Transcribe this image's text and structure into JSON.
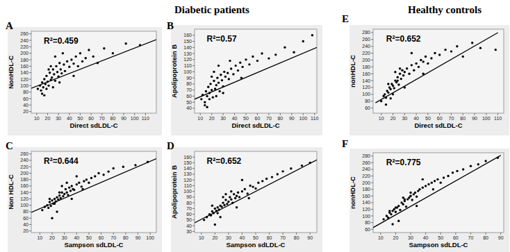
{
  "headers": [
    "Diabetic patients",
    "Healthy controls"
  ],
  "chart_data": [
    {
      "type": "scatter",
      "label": "A",
      "annotation": "R²=0.459",
      "x_label": "Direct sdLDL-C",
      "y_label": "NonHDL-C",
      "xlim": [
        5,
        120
      ],
      "ylim": [
        15,
        268
      ],
      "xticks": [
        10,
        20,
        30,
        40,
        50,
        60,
        70,
        80,
        90,
        100,
        110
      ],
      "yticks": [
        20,
        40,
        60,
        80,
        100,
        120,
        140,
        160,
        180,
        200,
        220,
        240,
        260
      ],
      "series": [
        {
          "type": "scatter",
          "color": "#000000",
          "marker": "circle",
          "x": [
            11,
            13,
            14,
            15,
            16,
            17,
            18,
            19,
            20,
            21,
            22,
            23,
            24,
            25,
            26,
            27,
            28,
            29,
            30,
            31,
            32,
            33,
            35,
            36,
            38,
            40,
            42,
            44,
            46,
            48,
            50,
            52,
            55,
            58,
            62,
            66,
            72,
            80,
            92,
            105,
            15,
            19,
            23,
            27,
            31,
            25,
            21,
            17,
            34,
            44
          ],
          "values": [
            90,
            100,
            85,
            110,
            95,
            120,
            105,
            130,
            112,
            100,
            140,
            118,
            125,
            150,
            135,
            115,
            160,
            142,
            128,
            170,
            150,
            138,
            165,
            145,
            175,
            158,
            180,
            168,
            190,
            160,
            200,
            175,
            185,
            210,
            190,
            170,
            215,
            200,
            230,
            225,
            75,
            90,
            160,
            190,
            110,
            95,
            150,
            70,
            200,
            130
          ]
        },
        {
          "type": "line",
          "color": "#000000",
          "line_style": "solid",
          "x": [
            5,
            120
          ],
          "values": [
            92,
            242
          ]
        }
      ]
    },
    {
      "type": "scatter",
      "label": "B",
      "annotation": "R²=0.57",
      "x_label": "Direct sdLDL-C",
      "y_label": "Apolipoprotein B",
      "xlim": [
        5,
        112
      ],
      "ylim": [
        32,
        170
      ],
      "xticks": [
        10,
        20,
        30,
        40,
        50,
        60,
        70,
        80,
        90,
        100,
        110
      ],
      "yticks": [
        40,
        50,
        60,
        70,
        80,
        90,
        100,
        110,
        120,
        130,
        140,
        150,
        160
      ],
      "series": [
        {
          "type": "scatter",
          "color": "#000000",
          "marker": "circle",
          "x": [
            11,
            12,
            14,
            15,
            16,
            17,
            18,
            19,
            20,
            21,
            22,
            23,
            24,
            25,
            26,
            27,
            28,
            29,
            30,
            31,
            32,
            34,
            35,
            37,
            39,
            41,
            43,
            45,
            47,
            50,
            53,
            56,
            60,
            64,
            70,
            76,
            84,
            92,
            100,
            108,
            14,
            18,
            22,
            26,
            30,
            24,
            20,
            16,
            36,
            46
          ],
          "values": [
            55,
            62,
            50,
            68,
            60,
            75,
            65,
            80,
            70,
            58,
            85,
            72,
            78,
            90,
            82,
            68,
            95,
            86,
            76,
            100,
            92,
            98,
            88,
            105,
            96,
            110,
            102,
            115,
            108,
            120,
            112,
            125,
            118,
            130,
            122,
            128,
            140,
            132,
            150,
            160,
            45,
            55,
            100,
            110,
            65,
            60,
            92,
            42,
            118,
            90
          ]
        },
        {
          "type": "line",
          "color": "#000000",
          "line_style": "solid",
          "x": [
            5,
            112
          ],
          "values": [
            55,
            140
          ]
        }
      ]
    },
    {
      "type": "scatter",
      "label": "C",
      "annotation": "R²=0.644",
      "x_label": "Sampson sdLDL-C",
      "y_label": "Non HDL-C",
      "xlim": [
        3,
        105
      ],
      "ylim": [
        15,
        268
      ],
      "xticks": [
        10,
        20,
        30,
        40,
        50,
        60,
        70,
        80,
        90,
        100
      ],
      "yticks": [
        20,
        40,
        60,
        80,
        100,
        120,
        140,
        160,
        180,
        200,
        220,
        240,
        260
      ],
      "series": [
        {
          "type": "scatter",
          "color": "#000000",
          "marker": "circle",
          "x": [
            12,
            14,
            16,
            17,
            18,
            19,
            20,
            21,
            22,
            23,
            24,
            25,
            26,
            27,
            28,
            29,
            30,
            31,
            32,
            33,
            34,
            35,
            36,
            37,
            38,
            40,
            42,
            44,
            46,
            48,
            50,
            52,
            55,
            58,
            62,
            66,
            70,
            78,
            88,
            98,
            20,
            24,
            28,
            32,
            36,
            26,
            22,
            18,
            40,
            45
          ],
          "values": [
            85,
            95,
            100,
            92,
            110,
            98,
            115,
            105,
            120,
            112,
            125,
            118,
            130,
            122,
            140,
            128,
            135,
            150,
            140,
            132,
            155,
            145,
            160,
            150,
            148,
            165,
            170,
            158,
            175,
            180,
            170,
            185,
            190,
            200,
            195,
            205,
            215,
            220,
            225,
            235,
            60,
            80,
            160,
            170,
            120,
            140,
            105,
            120,
            190,
            150
          ]
        },
        {
          "type": "line",
          "color": "#000000",
          "line_style": "solid",
          "x": [
            3,
            105
          ],
          "values": [
            78,
            245
          ]
        }
      ]
    },
    {
      "type": "scatter",
      "label": "D",
      "annotation": "R²=0.652",
      "x_label": "Sampson sdLDL-C",
      "y_label": "Apolipoprotein B",
      "xlim": [
        5,
        95
      ],
      "ylim": [
        28,
        170
      ],
      "xticks": [
        10,
        20,
        30,
        40,
        50,
        60,
        70,
        80,
        90
      ],
      "yticks": [
        30,
        40,
        50,
        60,
        70,
        80,
        90,
        100,
        110,
        120,
        130,
        140,
        150,
        160
      ],
      "series": [
        {
          "type": "scatter",
          "color": "#000000",
          "marker": "circle",
          "x": [
            12,
            14,
            16,
            17,
            18,
            19,
            20,
            21,
            22,
            23,
            24,
            25,
            26,
            27,
            28,
            29,
            30,
            31,
            32,
            33,
            34,
            35,
            36,
            37,
            38,
            40,
            42,
            44,
            46,
            48,
            50,
            52,
            55,
            58,
            62,
            66,
            70,
            76,
            84,
            90,
            20,
            24,
            28,
            32,
            36,
            26,
            22,
            18,
            40,
            45
          ],
          "values": [
            50,
            55,
            60,
            58,
            65,
            62,
            70,
            66,
            72,
            68,
            75,
            73,
            80,
            76,
            85,
            78,
            82,
            90,
            86,
            80,
            95,
            88,
            92,
            98,
            90,
            100,
            104,
            96,
            110,
            108,
            105,
            115,
            118,
            122,
            125,
            130,
            135,
            140,
            145,
            150,
            42,
            55,
            95,
            100,
            72,
            90,
            62,
            75,
            120,
            88
          ]
        },
        {
          "type": "line",
          "color": "#000000",
          "line_style": "solid",
          "x": [
            5,
            95
          ],
          "values": [
            45,
            155
          ]
        }
      ]
    },
    {
      "type": "scatter",
      "label": "E",
      "annotation": "R²=0.652",
      "x_label": "Direct sdLDL-C",
      "y_label": "nonHDL-C",
      "xlim": [
        3,
        115
      ],
      "ylim": [
        45,
        290
      ],
      "xticks": [
        10,
        20,
        30,
        40,
        50,
        60,
        70,
        80,
        90,
        100,
        110
      ],
      "yticks": [
        60,
        80,
        100,
        120,
        140,
        160,
        180,
        200,
        220,
        240,
        260,
        280
      ],
      "series": [
        {
          "type": "scatter",
          "color": "#000000",
          "marker": "circle",
          "x": [
            10,
            12,
            13,
            14,
            15,
            16,
            17,
            18,
            19,
            20,
            21,
            22,
            23,
            24,
            25,
            26,
            27,
            28,
            29,
            30,
            32,
            34,
            36,
            38,
            40,
            42,
            44,
            46,
            48,
            50,
            53,
            56,
            60,
            65,
            70,
            75,
            80,
            88,
            95,
            108,
            14,
            18,
            22,
            26,
            30,
            24,
            20,
            16,
            36,
            46
          ],
          "values": [
            80,
            95,
            100,
            90,
            110,
            105,
            120,
            115,
            130,
            125,
            118,
            140,
            135,
            150,
            128,
            160,
            145,
            170,
            155,
            165,
            175,
            160,
            185,
            170,
            190,
            180,
            200,
            195,
            210,
            190,
            205,
            220,
            215,
            230,
            225,
            240,
            210,
            250,
            235,
            230,
            70,
            88,
            165,
            175,
            120,
            140,
            100,
            130,
            220,
            160
          ]
        },
        {
          "type": "line",
          "color": "#000000",
          "line_style": "solid",
          "x": [
            5,
            110
          ],
          "values": [
            75,
            280
          ]
        }
      ]
    },
    {
      "type": "scatter",
      "label": "F",
      "annotation": "R²=0.775",
      "x_label": "Sampson sdLDL-C",
      "y_label": "nonHDL-C",
      "xlim": [
        5,
        92
      ],
      "ylim": [
        50,
        290
      ],
      "xticks": [
        10,
        20,
        30,
        40,
        50,
        60,
        70,
        80,
        90
      ],
      "yticks": [
        60,
        80,
        100,
        120,
        140,
        160,
        180,
        200,
        220,
        240,
        260,
        280
      ],
      "series": [
        {
          "type": "scatter",
          "color": "#000000",
          "marker": "circle",
          "x": [
            12,
            14,
            15,
            16,
            17,
            18,
            19,
            20,
            21,
            22,
            23,
            24,
            25,
            26,
            27,
            28,
            29,
            30,
            31,
            32,
            33,
            34,
            35,
            36,
            38,
            40,
            42,
            44,
            46,
            48,
            50,
            52,
            55,
            58,
            61,
            65,
            70,
            75,
            80,
            88,
            18,
            22,
            26,
            30,
            34,
            25,
            20,
            16,
            38,
            45
          ],
          "values": [
            90,
            100,
            95,
            110,
            105,
            115,
            120,
            112,
            125,
            130,
            118,
            140,
            135,
            145,
            128,
            150,
            155,
            160,
            148,
            165,
            170,
            158,
            175,
            180,
            185,
            190,
            195,
            200,
            205,
            210,
            200,
            215,
            220,
            230,
            235,
            240,
            250,
            255,
            265,
            275,
            75,
            85,
            150,
            170,
            130,
            155,
            125,
            115,
            210,
            180
          ]
        },
        {
          "type": "line",
          "color": "#000000",
          "line_style": "solid",
          "x": [
            5,
            90
          ],
          "values": [
            65,
            282
          ]
        }
      ]
    }
  ]
}
